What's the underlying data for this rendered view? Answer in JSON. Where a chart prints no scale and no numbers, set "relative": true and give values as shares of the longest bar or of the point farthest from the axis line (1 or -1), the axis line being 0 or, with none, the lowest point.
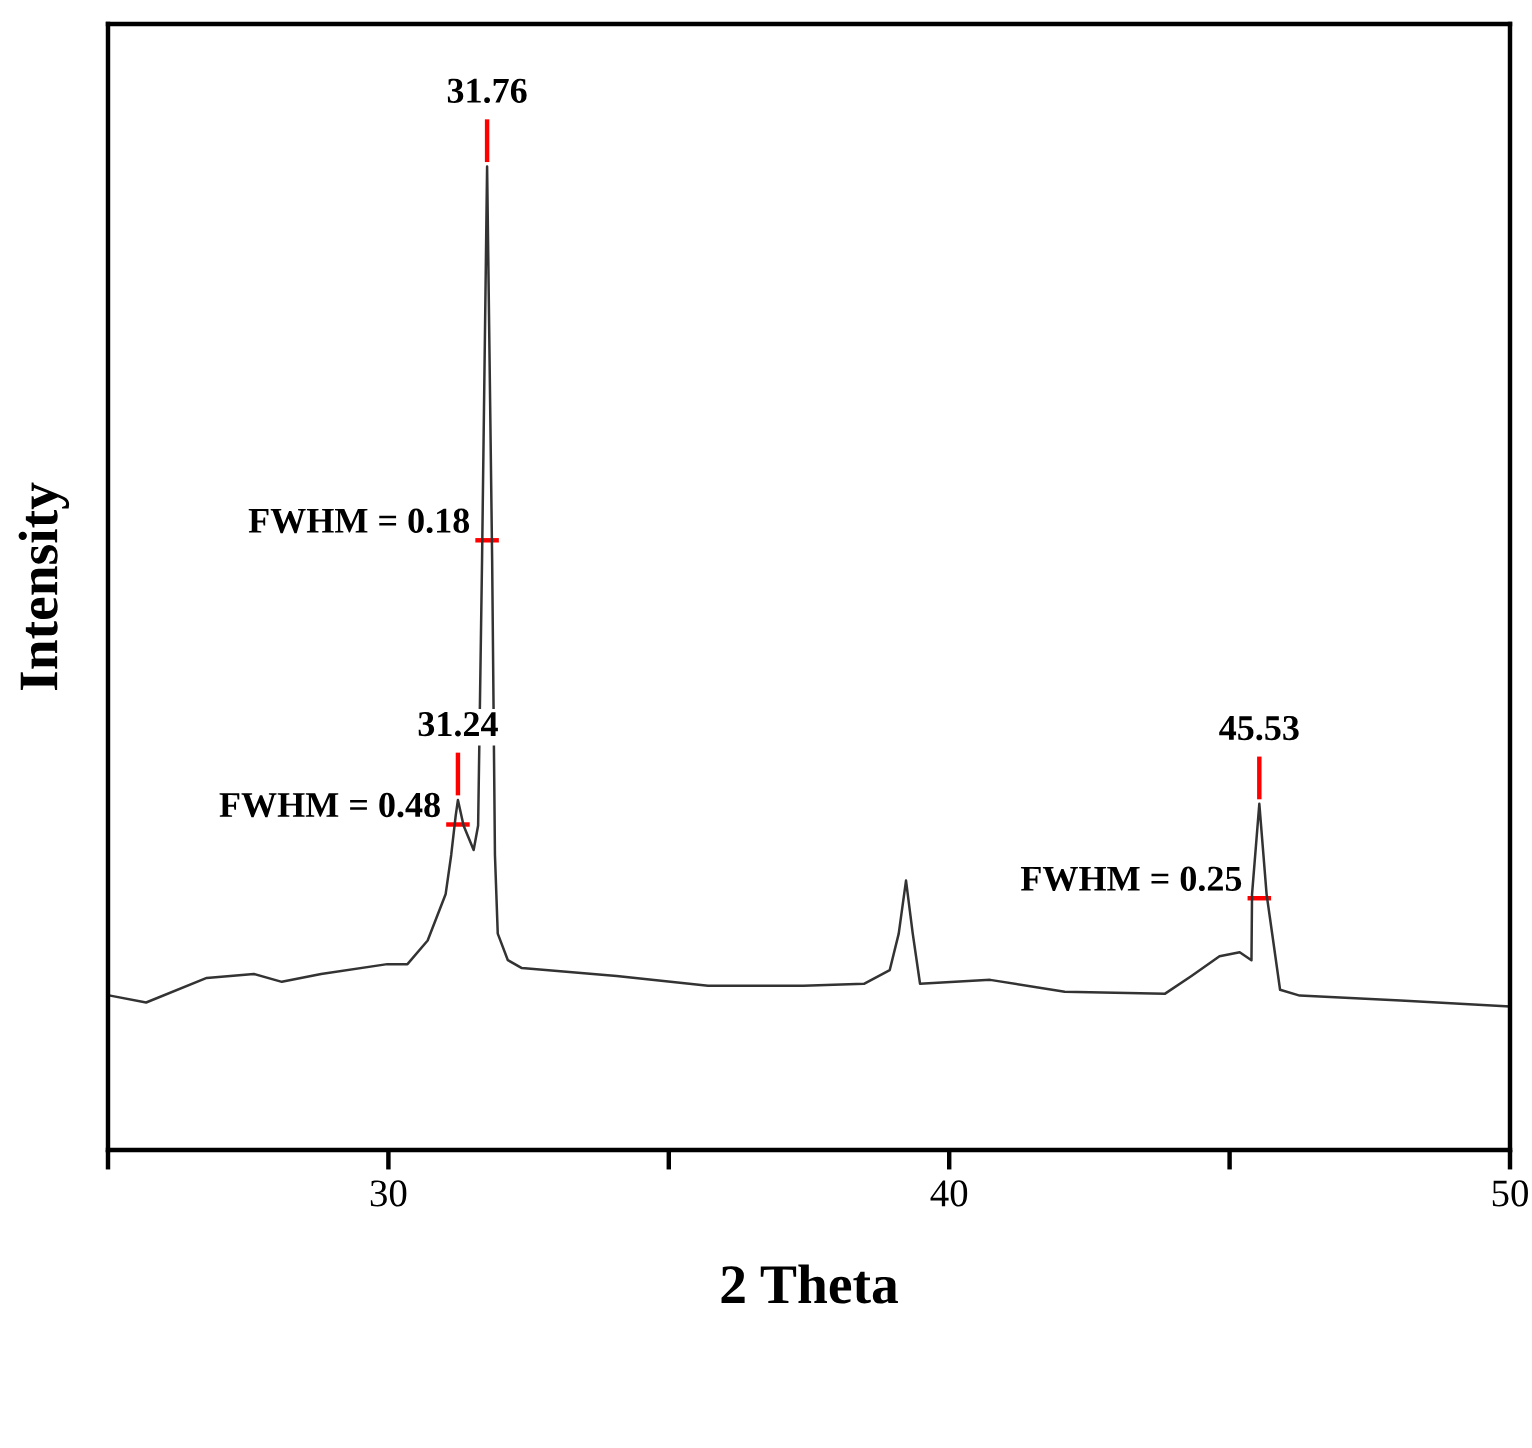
{
  "chart_data": {
    "type": "line",
    "xlabel": "2 Theta",
    "ylabel": "Intensity",
    "relative": true,
    "xlim": [
      25,
      50
    ],
    "xticks": [
      {
        "value": 25,
        "label": null
      },
      30,
      {
        "value": 35,
        "label": null
      },
      40,
      {
        "value": 45,
        "label": null
      },
      50
    ],
    "tick_labels": "x",
    "grid": false,
    "legend": false,
    "series": [
      {
        "color": "#333333",
        "x": [
          25.04,
          25.68,
          26.76,
          27.6,
          28.1,
          28.8,
          29.98,
          30.34,
          30.7,
          31.02,
          31.12,
          31.2,
          31.24,
          31.34,
          31.52,
          31.6,
          31.67,
          31.76,
          31.85,
          31.9,
          31.95,
          32.13,
          32.38,
          34.07,
          35.7,
          37.4,
          38.48,
          38.94,
          39.1,
          39.23,
          39.35,
          39.48,
          40.73,
          42.06,
          43.85,
          44.32,
          44.82,
          45.18,
          45.39,
          45.4,
          45.53,
          45.66,
          45.9,
          46.25,
          48.05,
          50.0
        ],
        "values": [
          0.157,
          0.15,
          0.175,
          0.179,
          0.171,
          0.179,
          0.189,
          0.189,
          0.213,
          0.26,
          0.3,
          0.34,
          0.356,
          0.33,
          0.305,
          0.33,
          0.6,
          1,
          0.6,
          0.3,
          0.22,
          0.193,
          0.185,
          0.177,
          0.167,
          0.167,
          0.169,
          0.183,
          0.22,
          0.274,
          0.22,
          0.169,
          0.173,
          0.161,
          0.159,
          0.177,
          0.197,
          0.201,
          0.193,
          0.26,
          0.352,
          0.26,
          0.163,
          0.157,
          0.152,
          0.146
        ]
      }
    ],
    "annotations": [
      {
        "text": "31.76",
        "x": 31.76,
        "y": 1
      },
      {
        "text": "FWHM = 0.18",
        "x": 31.76,
        "y": 0.62
      },
      {
        "text": "31.24",
        "x": 31.24,
        "y": 0.356
      },
      {
        "text": "FWHM = 0.48",
        "x": 31.24,
        "y": 0.331
      },
      {
        "text": "45.53",
        "x": 45.53,
        "y": 0.352
      },
      {
        "text": "FWHM = 0.25",
        "x": 45.53,
        "y": 0.256
      }
    ]
  }
}
